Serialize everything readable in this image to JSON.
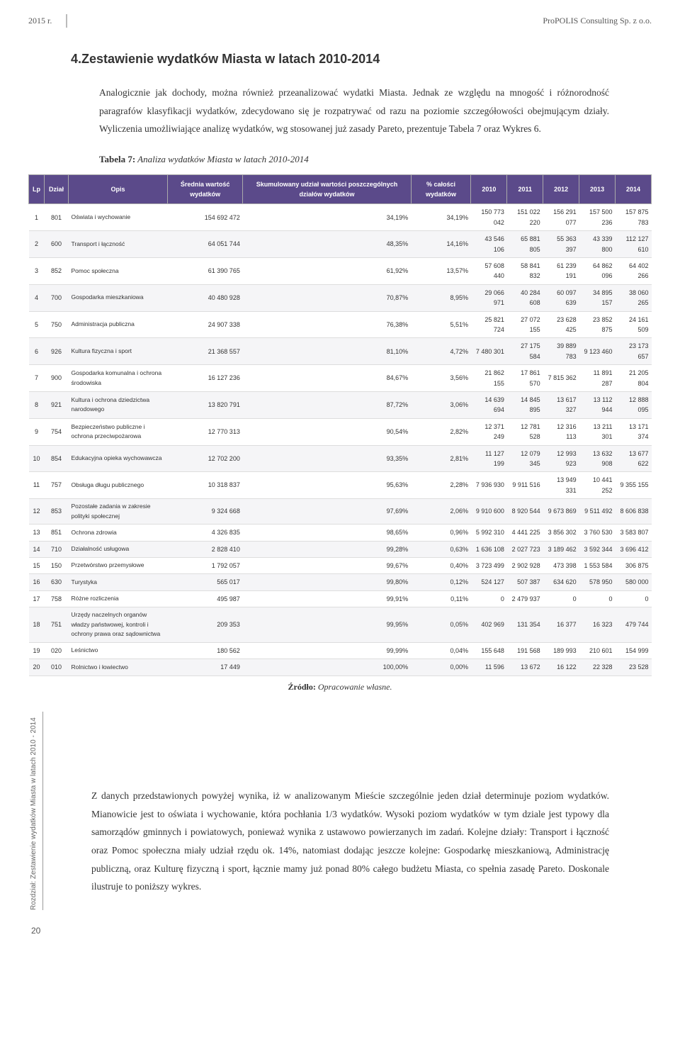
{
  "header": {
    "year": "2015 r.",
    "company": "ProPOLIS Consulting Sp. z o.o."
  },
  "section_title": "4.Zestawienie wydatków Miasta w latach 2010-2014",
  "intro_text": "Analogicznie jak dochody, można również przeanalizować wydatki Miasta. Jednak ze względu na mnogość i różnorodność paragrafów klasyfikacji wydatków, zdecydowano się je rozpatrywać od razu na poziomie szczegółowości obejmującym działy. Wyliczenia umożliwiające analizę wydatków, wg stosowanej już zasady Pareto, prezentuje Tabela 7 oraz Wykres 6.",
  "table_caption_bold": "Tabela 7:",
  "table_caption_italic": " Analiza wydatków Miasta w latach 2010-2014",
  "table": {
    "columns": [
      "Lp",
      "Dział",
      "Opis",
      "Średnia wartość wydatków",
      "Skumulowany udział wartości poszczególnych działów wydatków",
      "% całości wydatków",
      "2010",
      "2011",
      "2012",
      "2013",
      "2014"
    ],
    "rows": [
      [
        "1",
        "801",
        "Oświata i wychowanie",
        "154 692 472",
        "34,19%",
        "34,19%",
        "150 773 042",
        "151 022 220",
        "156 291 077",
        "157 500 236",
        "157 875 783"
      ],
      [
        "2",
        "600",
        "Transport i łączność",
        "64 051 744",
        "48,35%",
        "14,16%",
        "43 546 106",
        "65 881 805",
        "55 363 397",
        "43 339 800",
        "112 127 610"
      ],
      [
        "3",
        "852",
        "Pomoc społeczna",
        "61 390 765",
        "61,92%",
        "13,57%",
        "57 608 440",
        "58 841 832",
        "61 239 191",
        "64 862 096",
        "64 402 266"
      ],
      [
        "4",
        "700",
        "Gospodarka mieszkaniowa",
        "40 480 928",
        "70,87%",
        "8,95%",
        "29 066 971",
        "40 284 608",
        "60 097 639",
        "34 895 157",
        "38 060 265"
      ],
      [
        "5",
        "750",
        "Administracja publiczna",
        "24 907 338",
        "76,38%",
        "5,51%",
        "25 821 724",
        "27 072 155",
        "23 628 425",
        "23 852 875",
        "24 161 509"
      ],
      [
        "6",
        "926",
        "Kultura fizyczna i sport",
        "21 368 557",
        "81,10%",
        "4,72%",
        "7 480 301",
        "27 175 584",
        "39 889 783",
        "9 123 460",
        "23 173 657"
      ],
      [
        "7",
        "900",
        "Gospodarka komunalna i ochrona środowiska",
        "16 127 236",
        "84,67%",
        "3,56%",
        "21 862 155",
        "17 861 570",
        "7 815 362",
        "11 891 287",
        "21 205 804"
      ],
      [
        "8",
        "921",
        "Kultura i ochrona dziedzictwa narodowego",
        "13 820 791",
        "87,72%",
        "3,06%",
        "14 639 694",
        "14 845 895",
        "13 617 327",
        "13 112 944",
        "12 888 095"
      ],
      [
        "9",
        "754",
        "Bezpieczeństwo publiczne i ochrona przeciwpożarowa",
        "12 770 313",
        "90,54%",
        "2,82%",
        "12 371 249",
        "12 781 528",
        "12 316 113",
        "13 211 301",
        "13 171 374"
      ],
      [
        "10",
        "854",
        "Edukacyjna opieka wychowawcza",
        "12 702 200",
        "93,35%",
        "2,81%",
        "11 127 199",
        "12 079 345",
        "12 993 923",
        "13 632 908",
        "13 677 622"
      ],
      [
        "11",
        "757",
        "Obsługa długu publicznego",
        "10 318 837",
        "95,63%",
        "2,28%",
        "7 936 930",
        "9 911 516",
        "13 949 331",
        "10 441 252",
        "9 355 155"
      ],
      [
        "12",
        "853",
        "Pozostałe zadania w zakresie polityki społecznej",
        "9 324 668",
        "97,69%",
        "2,06%",
        "9 910 600",
        "8 920 544",
        "9 673 869",
        "9 511 492",
        "8 606 838"
      ],
      [
        "13",
        "851",
        "Ochrona zdrowia",
        "4 326 835",
        "98,65%",
        "0,96%",
        "5 992 310",
        "4 441 225",
        "3 856 302",
        "3 760 530",
        "3 583 807"
      ],
      [
        "14",
        "710",
        "Działalność usługowa",
        "2 828 410",
        "99,28%",
        "0,63%",
        "1 636 108",
        "2 027 723",
        "3 189 462",
        "3 592 344",
        "3 696 412"
      ],
      [
        "15",
        "150",
        "Przetwórstwo przemysłowe",
        "1 792 057",
        "99,67%",
        "0,40%",
        "3 723 499",
        "2 902 928",
        "473 398",
        "1 553 584",
        "306 875"
      ],
      [
        "16",
        "630",
        "Turystyka",
        "565 017",
        "99,80%",
        "0,12%",
        "524 127",
        "507 387",
        "634 620",
        "578 950",
        "580 000"
      ],
      [
        "17",
        "758",
        "Różne rozliczenia",
        "495 987",
        "99,91%",
        "0,11%",
        "0",
        "2 479 937",
        "0",
        "0",
        "0"
      ],
      [
        "18",
        "751",
        "Urzędy naczelnych organów władzy państwowej, kontroli i ochrony prawa oraz sądownictwa",
        "209 353",
        "99,95%",
        "0,05%",
        "402 969",
        "131 354",
        "16 377",
        "16 323",
        "479 744"
      ],
      [
        "19",
        "020",
        "Leśnictwo",
        "180 562",
        "99,99%",
        "0,04%",
        "155 648",
        "191 568",
        "189 993",
        "210 601",
        "154 999"
      ],
      [
        "20",
        "010",
        "Rolnictwo i łowiectwo",
        "17 449",
        "100,00%",
        "0,00%",
        "11 596",
        "13 672",
        "16 122",
        "22 328",
        "23 528"
      ]
    ]
  },
  "source_bold": "Źródło:",
  "source_italic": " Opracowanie własne.",
  "conclusion_text": "Z danych przedstawionych powyżej wynika, iż w analizowanym Mieście szczególnie jeden dział determinuje poziom wydatków. Mianowicie jest to oświata i wychowanie, która pochłania 1/3 wydatków. Wysoki poziom wydatków w tym dziale jest typowy dla samorządów gminnych i powiatowych, ponieważ wynika z ustawowo powierzanych im zadań. Kolejne działy: Transport i łączność oraz Pomoc społeczna miały udział rzędu ok. 14%, natomiast dodając jeszcze kolejne: Gospodarkę mieszkaniową, Administrację publiczną, oraz Kulturę fizyczną i sport, łącznie mamy już ponad 80% całego budżetu Miasta, co spełnia zasadę Pareto. Doskonale ilustruje to poniższy wykres.",
  "rotated_label": "Rozdział: Zestawienie wydatków Miasta w latach 2010 - 2014",
  "page_number": "20"
}
